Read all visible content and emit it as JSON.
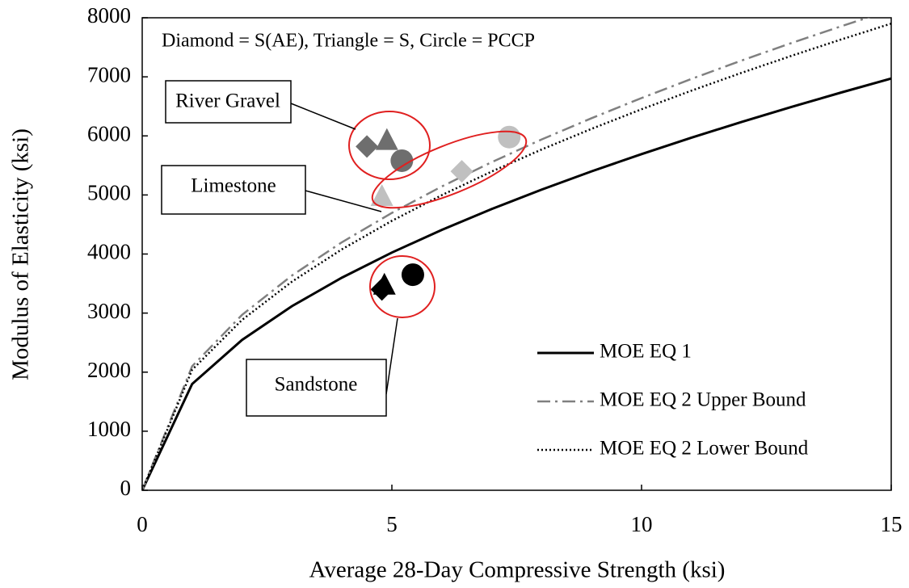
{
  "chart_data": {
    "type": "line",
    "xlabel": "Average 28-Day Compressive Strength (ksi)",
    "ylabel": "Modulus of Elasticity (ksi)",
    "annotation": "Diamond = S(AE), Triangle = S, Circle = PCCP",
    "xlim": [
      0,
      15
    ],
    "xticks": [
      0,
      5,
      10,
      15
    ],
    "ylim": [
      0,
      8000
    ],
    "yticks": [
      0,
      1000,
      2000,
      3000,
      4000,
      5000,
      6000,
      7000,
      8000
    ],
    "legend": "lower right",
    "x": [
      0,
      1,
      2,
      3,
      4,
      5,
      6,
      7,
      8,
      9,
      10,
      11,
      12,
      13,
      14,
      15
    ],
    "series": [
      {
        "name": "MOE EQ 1",
        "color": "#000000",
        "linestyle": "solid",
        "values": [
          0,
          1800,
          2546,
          3118,
          3600,
          4025,
          4409,
          4762,
          5091,
          5400,
          5692,
          5970,
          6235,
          6490,
          6735,
          6971
        ]
      },
      {
        "name": "MOE EQ 2 Upper Bound",
        "color": "#808080",
        "linestyle": "dashdot",
        "values": [
          0,
          2100,
          2970,
          3637,
          4200,
          4696,
          5144,
          5556,
          5940,
          6300,
          6641,
          6965,
          7275,
          7572,
          7857,
          8133
        ]
      },
      {
        "name": "MOE EQ 2 Lower Bound",
        "color": "#000000",
        "linestyle": "dotted",
        "values": [
          0,
          2040,
          2885,
          3533,
          4080,
          4562,
          4997,
          5397,
          5770,
          6120,
          6451,
          6766,
          7067,
          7355,
          7633,
          7901
        ]
      }
    ],
    "groups": [
      {
        "label": "River Gravel",
        "color": "#6e6e6e",
        "points": [
          {
            "marker": "diamond",
            "x": 4.5,
            "y": 5820
          },
          {
            "marker": "triangle",
            "x": 4.9,
            "y": 5900
          },
          {
            "marker": "circle",
            "x": 5.2,
            "y": 5580
          }
        ]
      },
      {
        "label": "Limestone",
        "color": "#c0c0c0",
        "points": [
          {
            "marker": "triangle",
            "x": 4.8,
            "y": 4950
          },
          {
            "marker": "diamond",
            "x": 6.4,
            "y": 5400
          },
          {
            "marker": "circle",
            "x": 7.35,
            "y": 5980
          }
        ]
      },
      {
        "label": "Sandstone",
        "color": "#000000",
        "points": [
          {
            "marker": "diamond",
            "x": 4.8,
            "y": 3400
          },
          {
            "marker": "triangle",
            "x": 4.85,
            "y": 3450
          },
          {
            "marker": "circle",
            "x": 5.42,
            "y": 3650
          }
        ]
      }
    ]
  }
}
